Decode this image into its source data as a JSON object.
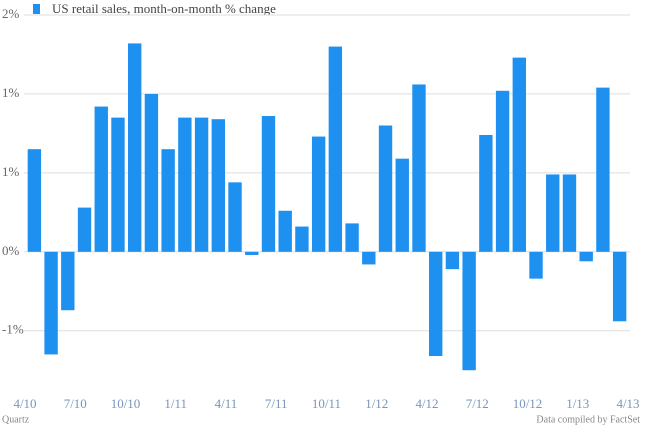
{
  "chart_data": {
    "type": "bar",
    "title": "US retail sales, month-on-month % change",
    "source": "Data compiled by FactSet",
    "brand": "Quartz",
    "color": "#1e90f0",
    "x_labels": [
      "4/10",
      "7/10",
      "10/10",
      "1/11",
      "4/11",
      "7/11",
      "10/11",
      "1/12",
      "4/12",
      "7/12",
      "10/12",
      "1/13",
      "4/13"
    ],
    "values": [
      0.65,
      -0.65,
      -0.37,
      0.28,
      0.92,
      0.85,
      1.32,
      1.0,
      0.65,
      0.85,
      0.85,
      0.84,
      0.44,
      -0.02,
      0.86,
      0.26,
      0.16,
      0.73,
      1.3,
      0.18,
      -0.08,
      0.8,
      0.59,
      1.06,
      -0.66,
      -0.11,
      -0.75,
      0.74,
      1.02,
      1.23,
      -0.17,
      0.49,
      0.49,
      -0.06,
      1.04,
      -0.44
    ],
    "ylim": [
      -0.85,
      1.5
    ],
    "yticks": [
      {
        "value": 1.5,
        "label": "2%"
      },
      {
        "value": 1.0,
        "label": "1%"
      },
      {
        "value": 0.5,
        "label": "1%"
      },
      {
        "value": 0,
        "label": "0%"
      },
      {
        "value": -0.5,
        "label": "-1%"
      }
    ],
    "grid": true
  }
}
